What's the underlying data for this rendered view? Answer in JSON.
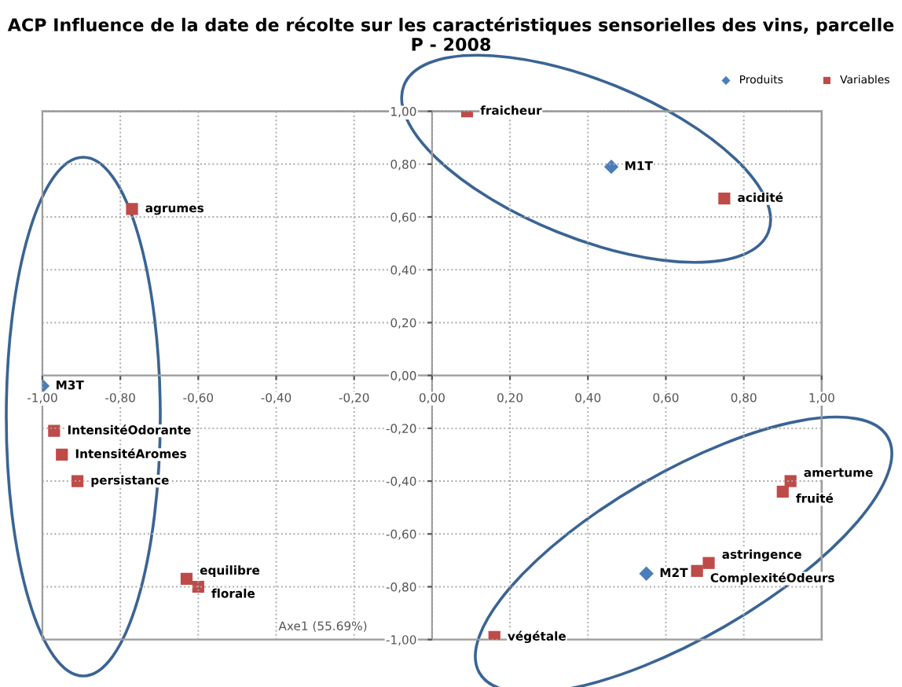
{
  "chart_data": {
    "type": "scatter",
    "title": "ACP Influence de la date de récolte sur les caractéristiques sensorielles des vins, parcelle P - 2008",
    "xlabel": "Axe1 (55.69%)",
    "series": [
      {
        "name": "Produits",
        "color": "#4a7ebb",
        "marker": "diamond",
        "x": [
          -1.0,
          0.46,
          0.55
        ],
        "values": [
          -0.04,
          0.79,
          -0.75
        ]
      },
      {
        "name": "Variables",
        "color": "#be4b48",
        "marker": "square",
        "x": [
          0.09,
          0.75,
          -0.77,
          -0.97,
          -0.95,
          -0.91,
          -0.63,
          -0.6,
          0.92,
          0.9,
          0.71,
          0.68,
          0.16
        ],
        "values": [
          1.0,
          0.67,
          0.63,
          -0.21,
          -0.3,
          -0.4,
          -0.77,
          -0.8,
          -0.4,
          -0.44,
          -0.71,
          -0.74,
          -0.99
        ]
      }
    ],
    "annotations": [
      {
        "text": "M3T",
        "x": -1.0,
        "y": -0.04
      },
      {
        "text": "M1T",
        "x": 0.46,
        "y": 0.79
      },
      {
        "text": "M2T",
        "x": 0.55,
        "y": -0.75
      },
      {
        "text": "fraicheur",
        "x": 0.09,
        "y": 1.0
      },
      {
        "text": "acidité",
        "x": 0.75,
        "y": 0.67
      },
      {
        "text": "agrumes",
        "x": -0.77,
        "y": 0.63
      },
      {
        "text": "IntensitéOdorante",
        "x": -0.97,
        "y": -0.21
      },
      {
        "text": "IntensitéAromes",
        "x": -0.95,
        "y": -0.3
      },
      {
        "text": "persistance",
        "x": -0.91,
        "y": -0.4
      },
      {
        "text": "equilibre",
        "x": -0.63,
        "y": -0.77
      },
      {
        "text": "florale",
        "x": -0.6,
        "y": -0.8
      },
      {
        "text": "amertume",
        "x": 0.92,
        "y": -0.4
      },
      {
        "text": "fruité",
        "x": 0.9,
        "y": -0.44
      },
      {
        "text": "astringence",
        "x": 0.71,
        "y": -0.71
      },
      {
        "text": "ComplexitéOdeurs",
        "x": 0.68,
        "y": -0.74
      },
      {
        "text": "végétale",
        "x": 0.16,
        "y": -0.99
      }
    ],
    "xlim": [
      -1.0,
      1.0
    ],
    "ylim": [
      -1.0,
      1.0
    ],
    "xticks": [
      {
        "value": -1.0,
        "label": "-1,00"
      },
      {
        "value": -0.8,
        "label": "-0,80"
      },
      {
        "value": -0.6,
        "label": "-0,60"
      },
      {
        "value": -0.4,
        "label": "-0,40"
      },
      {
        "value": -0.2,
        "label": "-0,20"
      },
      {
        "value": 0,
        "label": "0,00"
      },
      {
        "value": 0.2,
        "label": "0,20"
      },
      {
        "value": 0.4,
        "label": "0,40"
      },
      {
        "value": 0.6,
        "label": "0,60"
      },
      {
        "value": 0.8,
        "label": "0,80"
      },
      {
        "value": 1.0,
        "label": "1,00"
      }
    ],
    "yticks": [
      {
        "value": -1.0,
        "label": "-1,00"
      },
      {
        "value": -0.8,
        "label": "-0,80"
      },
      {
        "value": -0.6,
        "label": "-0,60"
      },
      {
        "value": -0.4,
        "label": "-0,40"
      },
      {
        "value": -0.2,
        "label": "-0,20"
      },
      {
        "value": 0,
        "label": "0,00"
      },
      {
        "value": 0.2,
        "label": "0,20"
      },
      {
        "value": 0.4,
        "label": "0,40"
      },
      {
        "value": 0.6,
        "label": "0,60"
      },
      {
        "value": 0.8,
        "label": "0,80"
      },
      {
        "value": 1.0,
        "label": "1,00"
      }
    ],
    "grid": true,
    "legend": "top right"
  }
}
